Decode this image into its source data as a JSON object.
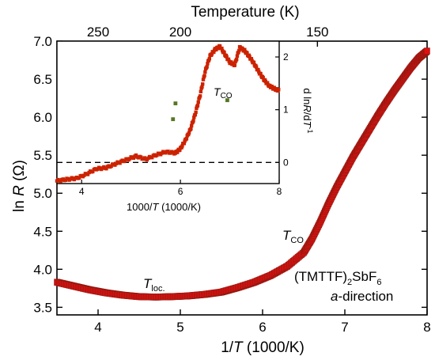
{
  "chart_data": [
    {
      "type": "scatter",
      "role": "main",
      "xlabel": "1/T (1000/K)",
      "ylabel": "ln R (Ω)",
      "top_xlabel": "Temperature (K)",
      "xlim": [
        3.5,
        8.0
      ],
      "ylim": [
        3.4,
        7.0
      ],
      "x_ticks": [
        4,
        5,
        6,
        7,
        8
      ],
      "y_ticks": [
        3.5,
        4.0,
        4.5,
        5.0,
        5.5,
        6.0,
        6.5,
        7.0
      ],
      "top_ticks": [
        250,
        200,
        150
      ],
      "color": "#dd1111",
      "annotations": [
        {
          "text": "T",
          "sub": "loc.",
          "x": 4.8,
          "y": 3.7
        },
        {
          "text": "T",
          "sub": "CO",
          "x": 6.35,
          "y": 4.37
        },
        {
          "line1": "(TMTTF)",
          "sub": "2",
          "rest": "SbF",
          "sub2": "6",
          "line2_italic": "a",
          "line2": "-direction"
        }
      ],
      "x": [
        3.5,
        3.7,
        3.9,
        4.1,
        4.3,
        4.5,
        4.7,
        4.9,
        5.1,
        5.3,
        5.5,
        5.7,
        5.9,
        6.1,
        6.3,
        6.5,
        6.6,
        6.7,
        6.8,
        6.9,
        7.0,
        7.1,
        7.2,
        7.3,
        7.4,
        7.5,
        7.6,
        7.7,
        7.8,
        7.9,
        8.0
      ],
      "y": [
        3.83,
        3.78,
        3.73,
        3.69,
        3.66,
        3.64,
        3.635,
        3.64,
        3.65,
        3.67,
        3.7,
        3.76,
        3.83,
        3.92,
        4.04,
        4.22,
        4.4,
        4.62,
        4.86,
        5.08,
        5.28,
        5.48,
        5.66,
        5.84,
        6.02,
        6.19,
        6.35,
        6.5,
        6.65,
        6.78,
        6.87
      ]
    },
    {
      "type": "scatter",
      "role": "inset",
      "xlabel": "1000/T (1000/K)",
      "ylabel": "d lnR/dT⁻¹",
      "xlim": [
        3.5,
        8.0
      ],
      "ylim": [
        -0.4,
        2.3
      ],
      "x_ticks": [
        4,
        6,
        8
      ],
      "y_ticks": [
        0,
        1,
        2
      ],
      "zero_line": "dashed",
      "color": "#cc2200",
      "annotation": {
        "text": "T",
        "sub": "CO",
        "x": 6.8,
        "y": 1.35
      },
      "x": [
        3.5,
        3.7,
        3.9,
        4.1,
        4.3,
        4.5,
        4.7,
        4.9,
        5.1,
        5.3,
        5.5,
        5.7,
        5.9,
        6.0,
        6.1,
        6.2,
        6.3,
        6.4,
        6.5,
        6.6,
        6.7,
        6.8,
        6.9,
        7.0,
        7.1,
        7.2,
        7.3,
        7.4,
        7.5,
        7.6,
        7.7,
        7.8,
        7.9,
        8.0
      ],
      "y": [
        -0.35,
        -0.32,
        -0.3,
        -0.22,
        -0.12,
        -0.1,
        -0.02,
        0.05,
        0.12,
        0.06,
        0.14,
        0.2,
        0.18,
        0.26,
        0.42,
        0.62,
        0.92,
        1.28,
        1.72,
        2.02,
        2.14,
        2.2,
        2.05,
        1.9,
        1.85,
        2.18,
        2.12,
        2.0,
        1.86,
        1.7,
        1.56,
        1.45,
        1.4,
        1.36
      ],
      "outliers": [
        {
          "x": 5.85,
          "y": 0.82
        },
        {
          "x": 5.9,
          "y": 1.12
        },
        {
          "x": 6.95,
          "y": 1.18
        }
      ]
    }
  ]
}
